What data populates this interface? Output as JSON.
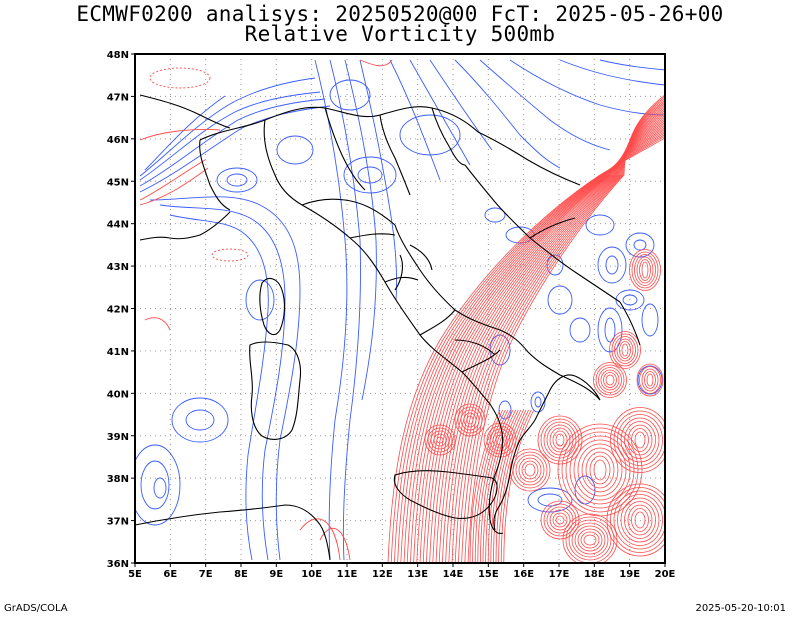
{
  "header": {
    "title_line1": "ECMWF0200 analisys: 20250520@00 FcT: 2025-05-26+00",
    "title_line2": "Relative Vorticity 500mb"
  },
  "map": {
    "lon_labels": [
      "5E",
      "6E",
      "7E",
      "8E",
      "9E",
      "10E",
      "11E",
      "12E",
      "13E",
      "14E",
      "15E",
      "16E",
      "17E",
      "18E",
      "19E",
      "20E"
    ],
    "lat_labels": [
      "48N",
      "47N",
      "46N",
      "45N",
      "44N",
      "43N",
      "42N",
      "41N",
      "40N",
      "39N",
      "38N",
      "37N",
      "36N"
    ],
    "lon_range": [
      5,
      20
    ],
    "lat_range": [
      36,
      48
    ],
    "colors": {
      "positive": "#ff4a4a",
      "negative": "#3a5cff",
      "coast": "#000000",
      "grid": "#9a9a9a"
    }
  },
  "footer": {
    "left": "GrADS/COLA",
    "right": "2025-05-20-10:01"
  }
}
